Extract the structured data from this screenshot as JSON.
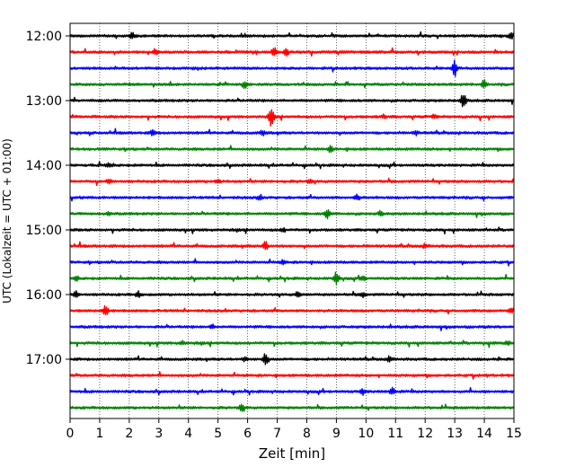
{
  "chart_data": {
    "type": "line",
    "subtype": "helicorder",
    "title": "",
    "xlabel": "Zeit  [min]",
    "ylabel": "UTC (Lokalzeit = UTC + 01:00)",
    "xlim": [
      0,
      15
    ],
    "x_ticks": [
      0,
      1,
      2,
      3,
      4,
      5,
      6,
      7,
      8,
      9,
      10,
      11,
      12,
      13,
      14,
      15
    ],
    "x_tick_labels": [
      "0",
      "1",
      "2",
      "3",
      "4",
      "5",
      "6",
      "7",
      "8",
      "9",
      "10",
      "11",
      "12",
      "13",
      "14",
      "15"
    ],
    "grid": "vertical dotted",
    "trace_interval_minutes": 15,
    "y_ticks": [
      "12:00",
      "13:00",
      "14:00",
      "15:00",
      "16:00",
      "17:00"
    ],
    "color_cycle": [
      "#000000",
      "#ff0000",
      "#0000ff",
      "#008000"
    ],
    "series": [
      {
        "start": "12:00",
        "color": "#000000",
        "events": [
          [
            2.1,
            3
          ],
          [
            14.9,
            4
          ]
        ]
      },
      {
        "start": "12:15",
        "color": "#ff0000",
        "events": [
          [
            2.9,
            2
          ],
          [
            6.9,
            5
          ],
          [
            7.3,
            3
          ]
        ]
      },
      {
        "start": "12:30",
        "color": "#0000ff",
        "events": [
          [
            13.0,
            9
          ]
        ]
      },
      {
        "start": "12:45",
        "color": "#008000",
        "events": [
          [
            5.9,
            4
          ],
          [
            14.0,
            5
          ]
        ]
      },
      {
        "start": "13:00",
        "color": "#000000",
        "events": [
          [
            13.3,
            8
          ]
        ]
      },
      {
        "start": "13:15",
        "color": "#ff0000",
        "events": [
          [
            6.8,
            10
          ],
          [
            10.6,
            2
          ],
          [
            12.3,
            2
          ]
        ]
      },
      {
        "start": "13:30",
        "color": "#0000ff",
        "events": [
          [
            2.8,
            3
          ],
          [
            6.5,
            3
          ],
          [
            11.7,
            2
          ]
        ]
      },
      {
        "start": "13:45",
        "color": "#008000",
        "events": [
          [
            8.8,
            3
          ]
        ]
      },
      {
        "start": "14:00",
        "color": "#000000",
        "events": [
          [
            1.3,
            2
          ]
        ]
      },
      {
        "start": "14:15",
        "color": "#ff0000",
        "events": [
          [
            1.3,
            2
          ],
          [
            5.0,
            2
          ],
          [
            8.1,
            2
          ]
        ]
      },
      {
        "start": "14:30",
        "color": "#0000ff",
        "events": [
          [
            6.4,
            2
          ],
          [
            9.7,
            3
          ]
        ]
      },
      {
        "start": "14:45",
        "color": "#008000",
        "events": [
          [
            1.3,
            2
          ],
          [
            8.7,
            6
          ],
          [
            10.5,
            3
          ]
        ]
      },
      {
        "start": "15:00",
        "color": "#000000",
        "events": [
          [
            7.2,
            2
          ]
        ]
      },
      {
        "start": "15:15",
        "color": "#ff0000",
        "events": [
          [
            6.6,
            5
          ],
          [
            12.0,
            2
          ]
        ]
      },
      {
        "start": "15:30",
        "color": "#0000ff",
        "events": [
          [
            7.2,
            2
          ]
        ]
      },
      {
        "start": "15:45",
        "color": "#008000",
        "events": [
          [
            0.2,
            2
          ],
          [
            9.0,
            7
          ],
          [
            9.9,
            3
          ]
        ]
      },
      {
        "start": "16:00",
        "color": "#000000",
        "events": [
          [
            0.2,
            3
          ],
          [
            2.3,
            3
          ],
          [
            7.7,
            3
          ],
          [
            9.9,
            3
          ]
        ]
      },
      {
        "start": "16:15",
        "color": "#ff0000",
        "events": [
          [
            1.2,
            6
          ],
          [
            14.9,
            3
          ]
        ]
      },
      {
        "start": "16:30",
        "color": "#0000ff",
        "events": [
          [
            4.8,
            2
          ]
        ]
      },
      {
        "start": "16:45",
        "color": "#008000",
        "events": [
          [
            3.8,
            2
          ],
          [
            14.8,
            2
          ]
        ]
      },
      {
        "start": "17:00",
        "color": "#000000",
        "events": [
          [
            5.9,
            2
          ],
          [
            6.6,
            7
          ],
          [
            10.8,
            3
          ]
        ]
      },
      {
        "start": "17:15",
        "color": "#ff0000",
        "events": []
      },
      {
        "start": "17:30",
        "color": "#0000ff",
        "events": [
          [
            9.9,
            3
          ],
          [
            10.9,
            4
          ]
        ]
      },
      {
        "start": "17:45",
        "color": "#008000",
        "events": [
          [
            5.8,
            4
          ]
        ]
      }
    ]
  }
}
